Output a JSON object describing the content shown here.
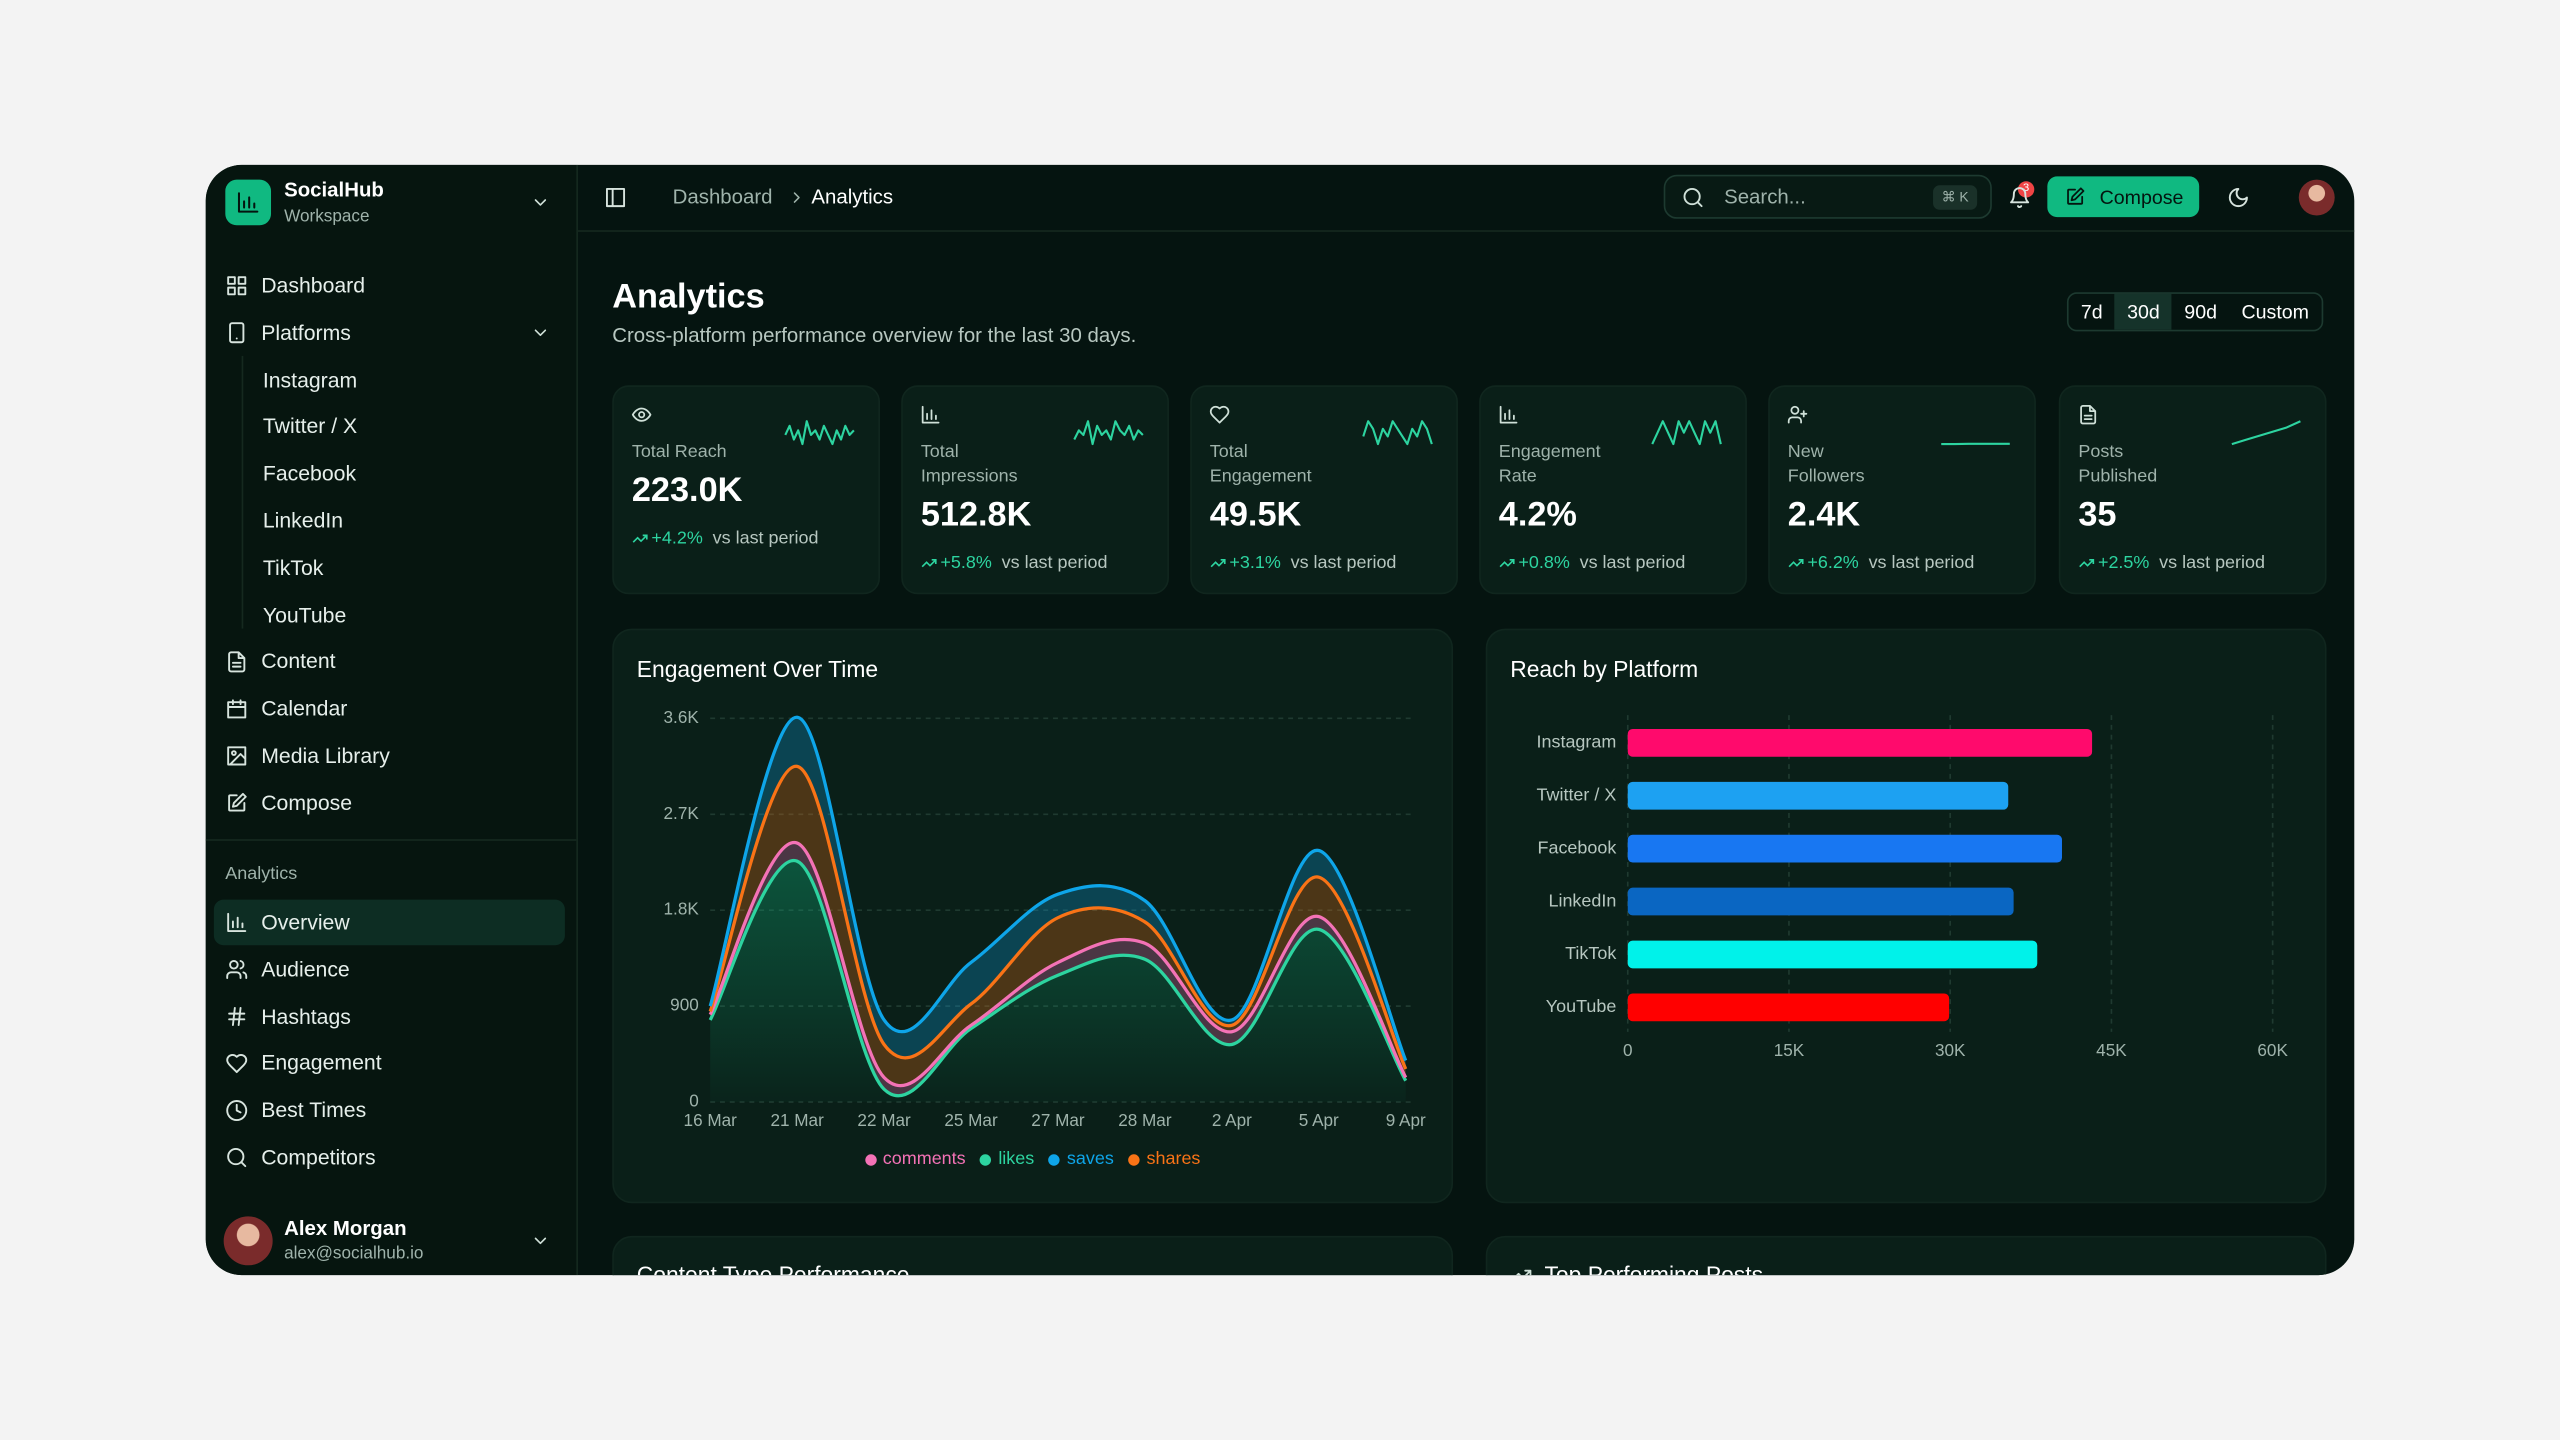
{
  "sidebar": {
    "brand": {
      "name": "SocialHub",
      "subtitle": "Workspace"
    },
    "nav": [
      {
        "label": "Dashboard"
      },
      {
        "label": "Platforms",
        "children": [
          "Instagram",
          "Twitter / X",
          "Facebook",
          "LinkedIn",
          "TikTok",
          "YouTube"
        ]
      },
      {
        "label": "Content"
      },
      {
        "label": "Calendar"
      },
      {
        "label": "Media Library"
      },
      {
        "label": "Compose"
      }
    ],
    "section_label": "Analytics",
    "analytics_nav": [
      "Overview",
      "Audience",
      "Hashtags",
      "Engagement",
      "Best Times",
      "Competitors"
    ],
    "user": {
      "name": "Alex Morgan",
      "email": "alex@socialhub.io"
    }
  },
  "topbar": {
    "breadcrumb": [
      "Dashboard",
      "Analytics"
    ],
    "search_placeholder": "Search...",
    "search_shortcut": "⌘ K",
    "notifications": "3",
    "compose": "Compose"
  },
  "header": {
    "title": "Analytics",
    "subtitle": "Cross-platform performance overview for the last 30 days.",
    "ranges": [
      "7d",
      "30d",
      "90d",
      "Custom"
    ]
  },
  "kpis": [
    {
      "label": "Total Reach",
      "value": "223.0K",
      "change": "+4.2%",
      "note": "vs last period",
      "trend": [
        5,
        7,
        4,
        6,
        3,
        8,
        5,
        6,
        4,
        7,
        5,
        3,
        6,
        4,
        7,
        5,
        6
      ]
    },
    {
      "label": "Total Impressions",
      "value": "512.8K",
      "change": "+5.8%",
      "note": "vs last period",
      "trend": [
        4,
        6,
        5,
        8,
        3,
        7,
        5,
        6,
        4,
        8,
        6,
        5,
        7,
        4,
        6,
        5
      ]
    },
    {
      "label": "Total Engagement",
      "value": "49.5K",
      "change": "+3.1%",
      "note": "vs last period",
      "trend": [
        5,
        7,
        6,
        4,
        6,
        5,
        7,
        6,
        5,
        4,
        6,
        5,
        7,
        6,
        4
      ]
    },
    {
      "label": "Engagement Rate",
      "value": "4.2%",
      "change": "+0.8%",
      "note": "vs last period",
      "trend": [
        4,
        5,
        6,
        5,
        4,
        6,
        5,
        6,
        5,
        4,
        6,
        5,
        6,
        4
      ]
    },
    {
      "label": "New Followers",
      "value": "2.4K",
      "change": "+6.2%",
      "note": "vs last period",
      "trend": [
        2.39,
        2.39,
        2.4,
        2.4,
        2.4,
        2.4
      ]
    },
    {
      "label": "Posts Published",
      "value": "35",
      "change": "+2.5%",
      "note": "vs last period",
      "trend": [
        24,
        26,
        28,
        30,
        32,
        35
      ]
    }
  ],
  "chart_data": [
    {
      "type": "area",
      "stacked": true,
      "title": "Engagement Over Time",
      "categories": [
        "16 Mar",
        "21 Mar",
        "22 Mar",
        "25 Mar",
        "27 Mar",
        "28 Mar",
        "2 Apr",
        "5 Apr",
        "9 Apr"
      ],
      "series": [
        {
          "name": "comments",
          "color": "#f472b6",
          "values": [
            50,
            170,
            110,
            30,
            120,
            150,
            120,
            120,
            30
          ]
        },
        {
          "name": "likes",
          "color": "#2dd4a0",
          "values": [
            770,
            2260,
            120,
            690,
            1190,
            1340,
            540,
            1620,
            200
          ]
        },
        {
          "name": "saves",
          "color": "#0ea5e9",
          "values": [
            50,
            460,
            230,
            390,
            220,
            200,
            50,
            250,
            80
          ]
        },
        {
          "name": "shares",
          "color": "#f97316",
          "values": [
            30,
            720,
            310,
            200,
            420,
            200,
            60,
            370,
            80
          ]
        }
      ],
      "ylim": [
        0,
        3600
      ],
      "yticks": [
        0,
        900,
        {
          "value": 1800,
          "label": "1.8K"
        },
        {
          "value": 2700,
          "label": "2.7K"
        },
        {
          "value": 3600,
          "label": "3.6K"
        }
      ],
      "grid": true
    },
    {
      "type": "bar",
      "orientation": "horizontal",
      "title": "Reach by Platform",
      "categories": [
        "Instagram",
        "Twitter / X",
        "Facebook",
        "LinkedIn",
        "TikTok",
        "YouTube"
      ],
      "values": [
        43200,
        35400,
        40400,
        35900,
        38100,
        29900
      ],
      "colors": [
        "#ff0a6c",
        "#1da1f2",
        "#1877f2",
        "#0a66c2",
        "#00f2ea",
        "#ff0000"
      ],
      "xlim": [
        0,
        60000
      ],
      "xticks": [
        0,
        {
          "value": 15000,
          "label": "15K"
        },
        {
          "value": 30000,
          "label": "30K"
        },
        {
          "value": 45000,
          "label": "45K"
        },
        {
          "value": 60000,
          "label": "60K"
        }
      ],
      "grid": true
    }
  ],
  "sections": {
    "content_types": {
      "title": "Content Type Performance"
    },
    "top_posts": {
      "title": "Top Performing Posts"
    }
  }
}
